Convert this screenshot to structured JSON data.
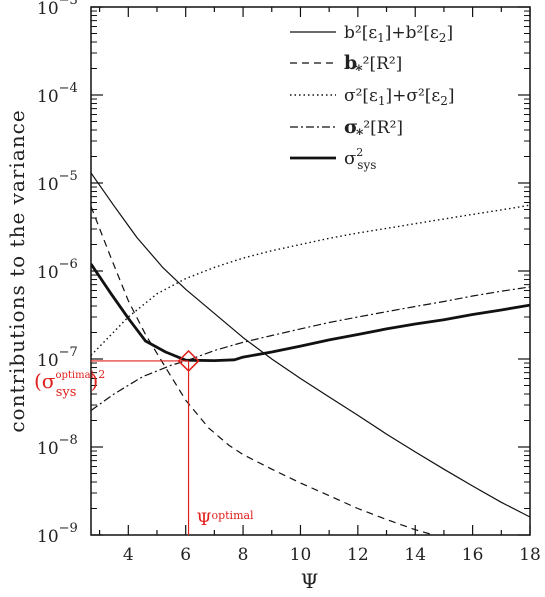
{
  "chart_data": {
    "type": "line",
    "xlabel": "Ψ",
    "ylabel": "contributions to the variance",
    "xlim": [
      2.7,
      18
    ],
    "ylim": [
      1e-09,
      0.001
    ],
    "yscale": "log",
    "grid": false,
    "legend_position": "top-right",
    "x_ticks": [
      4,
      6,
      8,
      10,
      12,
      14,
      16,
      18
    ],
    "x_tick_labels": [
      "4",
      "6",
      "8",
      "10",
      "12",
      "14",
      "16",
      "18"
    ],
    "y_ticks": [
      1e-09,
      1e-08,
      1e-07,
      1e-06,
      1e-05,
      0.0001,
      0.001
    ],
    "y_tick_labels": [
      {
        "base": "10",
        "exp": "−9"
      },
      {
        "base": "10",
        "exp": "−8"
      },
      {
        "base": "10",
        "exp": "−7"
      },
      {
        "base": "10",
        "exp": "−6"
      },
      {
        "base": "10",
        "exp": "−5"
      },
      {
        "base": "10",
        "exp": "−4"
      },
      {
        "base": "10",
        "exp": "−3"
      }
    ],
    "series": [
      {
        "style": "solid-thin",
        "legend": {
          "term1": "b²[ε",
          "sub1": "1",
          "mid": "]+b²[ε",
          "sub2": "2",
          "end": "]"
        },
        "points": [
          [
            2.7,
            1.3e-05
          ],
          [
            3.5,
            5.5e-06
          ],
          [
            4.3,
            2.4e-06
          ],
          [
            5.2,
            1.1e-06
          ],
          [
            6.0,
            6.2e-07
          ],
          [
            7.0,
            3.3e-07
          ],
          [
            8.0,
            1.75e-07
          ],
          [
            9.0,
            1e-07
          ],
          [
            10.0,
            6e-08
          ],
          [
            11.0,
            3.7e-08
          ],
          [
            12.0,
            2.3e-08
          ],
          [
            13.0,
            1.4e-08
          ],
          [
            14.0,
            8.8e-09
          ],
          [
            15.0,
            5.6e-09
          ],
          [
            16.0,
            3.6e-09
          ],
          [
            17.0,
            2.35e-09
          ],
          [
            18.0,
            1.6e-09
          ]
        ]
      },
      {
        "style": "dashed",
        "legend": {
          "bold": "b",
          "sub": "*",
          "rest": "²[R²]"
        },
        "points": [
          [
            2.7,
            5.4e-06
          ],
          [
            3.4,
            1.4e-06
          ],
          [
            4.0,
            4.6e-07
          ],
          [
            4.6,
            1.9e-07
          ],
          [
            5.3,
            8e-08
          ],
          [
            6.0,
            3.4e-08
          ],
          [
            6.8,
            1.65e-08
          ],
          [
            7.5,
            1.05e-08
          ],
          [
            8.0,
            8.2e-09
          ],
          [
            9.0,
            5.6e-09
          ],
          [
            10.0,
            3.9e-09
          ],
          [
            11.0,
            2.8e-09
          ],
          [
            12.0,
            2e-09
          ],
          [
            13.0,
            1.5e-09
          ],
          [
            14.0,
            1.15e-09
          ],
          [
            15.4,
            8.5e-10
          ]
        ]
      },
      {
        "style": "dotted",
        "legend": {
          "term1": "σ²[ε",
          "sub1": "1",
          "mid": "]+σ²[ε",
          "sub2": "2",
          "end": "]"
        },
        "points": [
          [
            2.7,
            1.1e-07
          ],
          [
            4.0,
            3e-07
          ],
          [
            5.0,
            5.5e-07
          ],
          [
            6.0,
            8.2e-07
          ],
          [
            7.0,
            1.1e-06
          ],
          [
            8.0,
            1.4e-06
          ],
          [
            9.0,
            1.7e-06
          ],
          [
            10.0,
            2e-06
          ],
          [
            11.0,
            2.35e-06
          ],
          [
            12.0,
            2.7e-06
          ],
          [
            13.0,
            3.05e-06
          ],
          [
            14.0,
            3.45e-06
          ],
          [
            15.0,
            3.9e-06
          ],
          [
            16.0,
            4.4e-06
          ],
          [
            17.0,
            4.95e-06
          ],
          [
            18.0,
            5.6e-06
          ]
        ]
      },
      {
        "style": "dashdot",
        "legend": {
          "bold": "σ",
          "sub": "*",
          "rest": "²[R²]"
        },
        "points": [
          [
            2.7,
            2.6e-08
          ],
          [
            3.5,
            4e-08
          ],
          [
            4.5,
            6.3e-08
          ],
          [
            5.5,
            8.5e-08
          ],
          [
            6.0,
            9.5e-08
          ],
          [
            7.0,
            1.25e-07
          ],
          [
            8.0,
            1.55e-07
          ],
          [
            9.0,
            1.85e-07
          ],
          [
            10.0,
            2.2e-07
          ],
          [
            11.0,
            2.6e-07
          ],
          [
            12.0,
            3e-07
          ],
          [
            13.0,
            3.45e-07
          ],
          [
            14.0,
            3.95e-07
          ],
          [
            15.0,
            4.5e-07
          ],
          [
            16.0,
            5.2e-07
          ],
          [
            17.0,
            5.9e-07
          ],
          [
            18.0,
            6.6e-07
          ]
        ]
      },
      {
        "style": "solid-thick",
        "legend": {
          "base": "σ",
          "sup": "2",
          "sub": "sys"
        },
        "points": [
          [
            2.7,
            1.2e-06
          ],
          [
            3.4,
            5.5e-07
          ],
          [
            4.0,
            2.9e-07
          ],
          [
            4.6,
            1.6e-07
          ],
          [
            5.3,
            1.2e-07
          ],
          [
            6.0,
            9.7e-08
          ],
          [
            7.0,
            9.6e-08
          ],
          [
            7.7,
            9.8e-08
          ],
          [
            8.0,
            1.05e-07
          ],
          [
            9.0,
            1.2e-07
          ],
          [
            10.0,
            1.4e-07
          ],
          [
            11.0,
            1.65e-07
          ],
          [
            12.0,
            1.9e-07
          ],
          [
            13.0,
            2.2e-07
          ],
          [
            14.0,
            2.5e-07
          ],
          [
            15.0,
            2.8e-07
          ],
          [
            16.0,
            3.2e-07
          ],
          [
            17.0,
            3.6e-07
          ],
          [
            18.0,
            4.1e-07
          ]
        ]
      }
    ],
    "optimal": {
      "x": 6.1,
      "y": 9.5e-08,
      "psi_label": {
        "base": "Ψ",
        "sup": "optimal"
      },
      "sigma_label": {
        "open": "(σ",
        "sup": "optimal",
        "sub": "sys",
        "close": ")",
        "power": "2"
      },
      "color": "#e0201c"
    }
  }
}
